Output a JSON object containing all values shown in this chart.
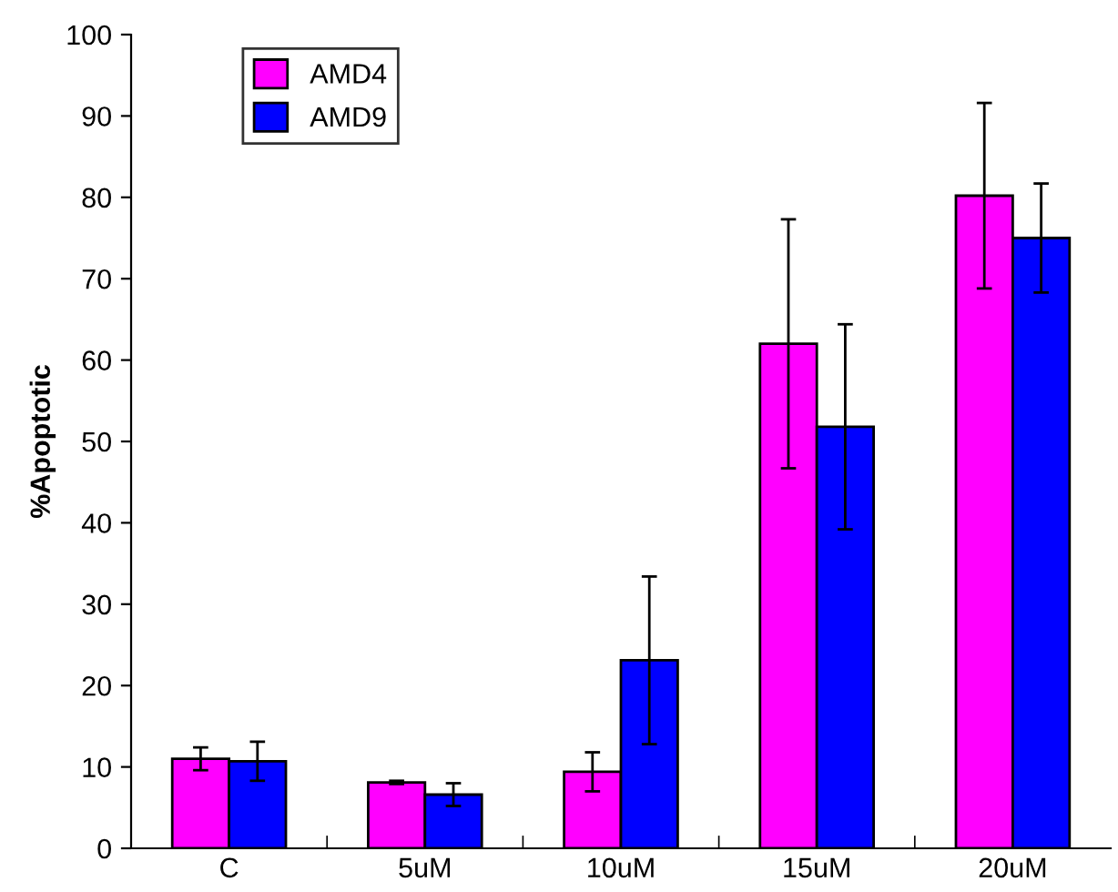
{
  "chart_data": {
    "type": "bar",
    "ylabel": "%Apoptotic",
    "categories": [
      "C",
      "5uM",
      "10uM",
      "15uM",
      "20uM"
    ],
    "series": [
      {
        "name": "AMD4",
        "color": "#ff00ff",
        "values": [
          11.0,
          8.1,
          9.4,
          62.0,
          80.2
        ],
        "errors": [
          1.4,
          0.2,
          2.4,
          15.3,
          11.4
        ]
      },
      {
        "name": "AMD9",
        "color": "#0000ff",
        "values": [
          10.7,
          6.6,
          23.1,
          51.8,
          75.0
        ],
        "errors": [
          2.4,
          1.4,
          10.3,
          12.6,
          6.7
        ]
      }
    ],
    "ylim": [
      0,
      100
    ],
    "yticks": [
      0,
      10,
      20,
      30,
      40,
      50,
      60,
      70,
      80,
      90,
      100
    ],
    "grid": false,
    "legend": "top left"
  }
}
